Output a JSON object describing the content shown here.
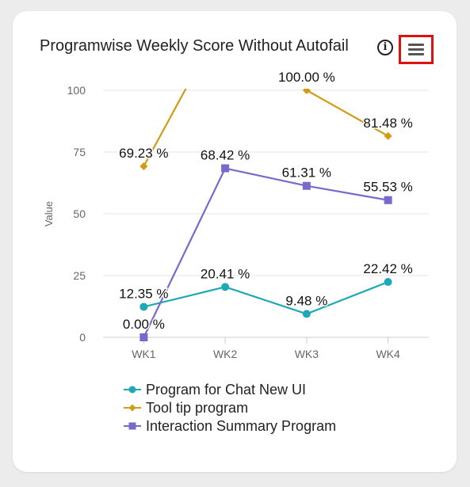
{
  "card": {
    "title": "Programwise Weekly Score Without Autofail",
    "info_icon_glyph": "i",
    "info_icon": "info-circle-icon",
    "menu_icon": "hamburger-menu-icon"
  },
  "chart_data": {
    "type": "line",
    "categories": [
      "WK1",
      "WK2",
      "WK3",
      "WK4"
    ],
    "ylabel": "Value",
    "xlabel": "",
    "ylim": [
      0,
      100
    ],
    "yticks": [
      0,
      25,
      50,
      75,
      100
    ],
    "grid": true,
    "legend_position": "bottom",
    "series": [
      {
        "name": "Program for Chat New UI",
        "values": [
          12.35,
          20.41,
          9.48,
          22.42
        ],
        "labels": [
          "12.35 %",
          "20.41 %",
          "9.48 %",
          "22.42 %"
        ],
        "color": "#1fa9b6",
        "marker": "circle"
      },
      {
        "name": "Tool tip program",
        "values": [
          69.23,
          null,
          100.0,
          81.48
        ],
        "labels": [
          "69.23 %",
          "",
          "100.00 %",
          "81.48 %"
        ],
        "color": "#d39b12",
        "marker": "diamond"
      },
      {
        "name": "Interaction Summary Program",
        "values": [
          0.0,
          68.42,
          61.31,
          55.53
        ],
        "labels": [
          "0.00 %",
          "68.42 %",
          "61.31 %",
          "55.53 %"
        ],
        "color": "#7b68cc",
        "marker": "square"
      }
    ]
  }
}
